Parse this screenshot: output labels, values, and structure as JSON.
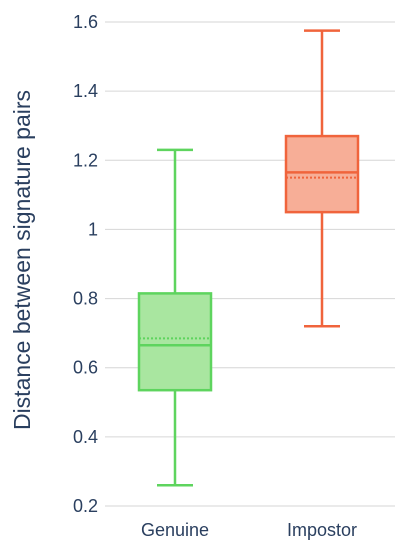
{
  "chart_data": {
    "type": "box",
    "title": "",
    "xlabel": "",
    "ylabel": "Distance between signature pairs",
    "ylim": [
      0.2,
      1.62
    ],
    "yticks": [
      0.2,
      0.4,
      0.6,
      0.8,
      1,
      1.2,
      1.4,
      1.6
    ],
    "ytick_labels": [
      "0.2",
      "0.4",
      "0.6",
      "0.8",
      "1",
      "1.2",
      "1.4",
      "1.6"
    ],
    "grid": true,
    "categories": [
      "Genuine",
      "Impostor"
    ],
    "series": [
      {
        "category": "Genuine",
        "color": "#5ed45e",
        "fill": "#a9e6a0",
        "min": 0.26,
        "q1": 0.535,
        "median": 0.665,
        "mean": 0.685,
        "q3": 0.815,
        "max": 1.23
      },
      {
        "category": "Impostor",
        "color": "#f0643c",
        "fill": "#f7ae97",
        "min": 0.72,
        "q1": 1.05,
        "median": 1.165,
        "mean": 1.15,
        "q3": 1.27,
        "max": 1.575
      }
    ]
  }
}
